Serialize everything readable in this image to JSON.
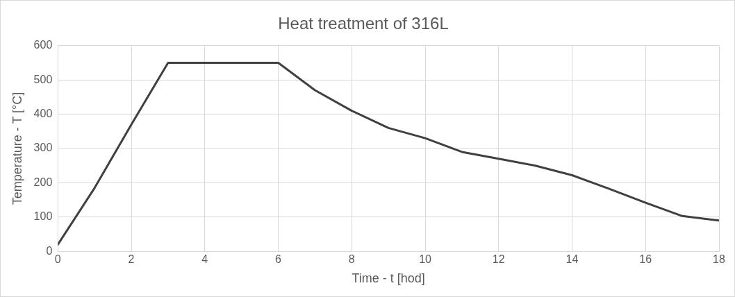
{
  "chart_data": {
    "type": "line",
    "title": "Heat treatment of 316L",
    "xlabel": "Time - t [hod]",
    "ylabel": "Temperature - T [°C]",
    "x": [
      0,
      1,
      2,
      3,
      4,
      5,
      6,
      7,
      8,
      9,
      10,
      11,
      12,
      13,
      14,
      15,
      16,
      17,
      18
    ],
    "series": [
      {
        "color": "#404040",
        "values": [
          20,
          185,
          370,
          550,
          550,
          550,
          550,
          470,
          410,
          360,
          330,
          290,
          270,
          250,
          222,
          183,
          142,
          103,
          90
        ]
      }
    ],
    "xlim": [
      0,
      18
    ],
    "xticks": [
      0,
      2,
      4,
      6,
      8,
      10,
      12,
      14,
      16,
      18
    ],
    "ylim": [
      0,
      600
    ],
    "yticks": [
      0,
      100,
      200,
      300,
      400,
      500,
      600
    ],
    "grid": true,
    "legend": false,
    "marker": "none",
    "line_style": "solid"
  }
}
